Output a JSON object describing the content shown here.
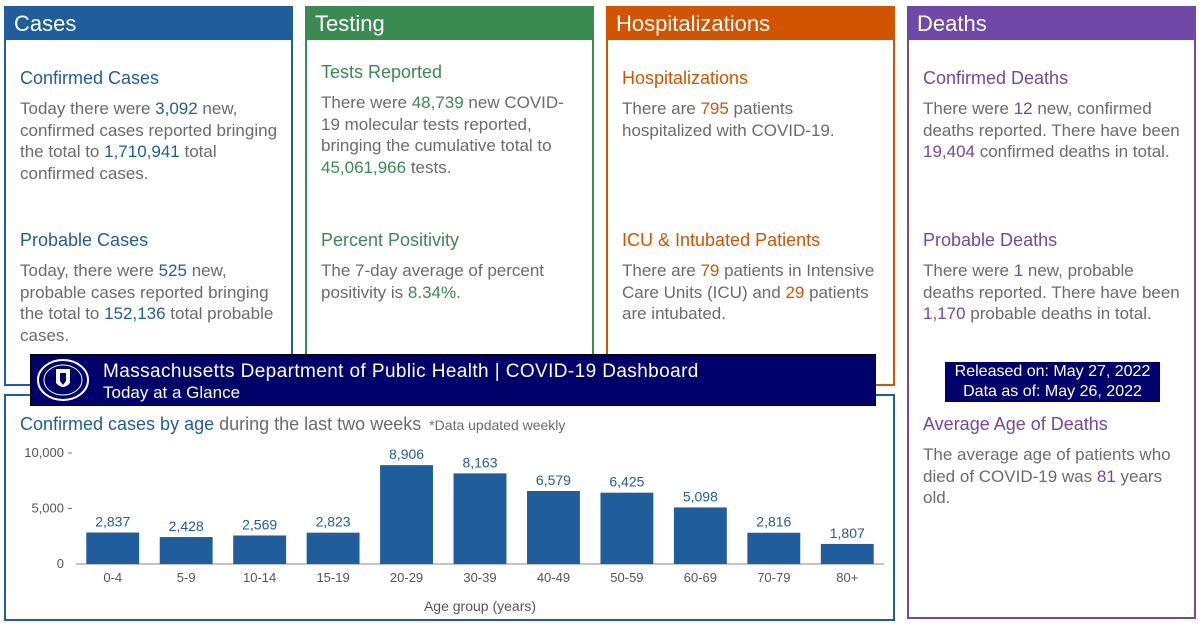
{
  "cards": {
    "cases": {
      "header": "Cases",
      "confirmed": {
        "title": "Confirmed Cases",
        "t1": "Today there were ",
        "new": "3,092",
        "t2": " new, confirmed cases reported bringing the total to ",
        "total": "1,710,941",
        "t3": " total confirmed cases."
      },
      "probable": {
        "title": "Probable Cases",
        "t1": "Today, there were ",
        "new": "525",
        "t2": " new, probable cases reported bringing the total to ",
        "total": "152,136",
        "t3": " total probable cases."
      }
    },
    "testing": {
      "header": "Testing",
      "tests": {
        "title": "Tests Reported",
        "t1": "There were ",
        "new": "48,739",
        "t2": " new COVID-19 molecular tests reported, bringing the cumulative total to ",
        "total": "45,061,966",
        "t3": " tests."
      },
      "positivity": {
        "title": "Percent Positivity",
        "t1": "The 7-day average of percent positivity is ",
        "value": "8.34%",
        "t2": "."
      }
    },
    "hospitalizations": {
      "header": "Hospitalizations",
      "hosp": {
        "title": "Hospitalizations",
        "t1": "There are ",
        "value": "795",
        "t2": " patients hospitalized with COVID-19."
      },
      "icu": {
        "title": "ICU & Intubated Patients",
        "t1": "There are ",
        "icu": "79",
        "t2": " patients in Intensive Care Units (ICU) and ",
        "intubated": "29",
        "t3": " patients are intubated."
      }
    },
    "deaths": {
      "header": "Deaths",
      "confirmed": {
        "title": "Confirmed Deaths",
        "t1": "There were ",
        "new": "12",
        "t2": " new, confirmed deaths reported. There have been ",
        "total": "19,404",
        "t3": " confirmed deaths in total."
      },
      "probable": {
        "title": "Probable Deaths",
        "t1": "There were ",
        "new": "1",
        "t2": " new, probable deaths reported. There have been ",
        "total": "1,170",
        "t3": " probable deaths in total."
      },
      "average_age": {
        "title": "Average Age of Deaths",
        "t1": "The average age of patients who died of COVID-19 was ",
        "value": "81",
        "t2": " years old."
      }
    }
  },
  "banner": {
    "title": "Massachusetts Department of Public Health  |  COVID-19 Dashboard",
    "subtitle": "Today at a Glance",
    "seal_icon": "massachusetts-seal-icon"
  },
  "release": {
    "released": "Released on: May 27, 2022",
    "data_as_of": "Data as of: May 26, 2022"
  },
  "colors": {
    "cases": "#1f5d9c",
    "testing": "#3a8a52",
    "hospitalizations": "#d35400",
    "deaths": "#7048a8",
    "banner": "#00006a",
    "bar": "#1f5d9c"
  },
  "chart_data": {
    "type": "bar",
    "title_highlight": "Confirmed cases by age",
    "title_rest": " during the last two weeks",
    "note": "*Data updated weekly",
    "xlabel": "Age group (years)",
    "ylabel": "",
    "categories": [
      "0-4",
      "5-9",
      "10-14",
      "15-19",
      "20-29",
      "30-39",
      "40-49",
      "50-59",
      "60-69",
      "70-79",
      "80+"
    ],
    "values": [
      2837,
      2428,
      2569,
      2823,
      8906,
      8163,
      6579,
      6425,
      5098,
      2816,
      1807
    ],
    "value_labels": [
      "2,837",
      "2,428",
      "2,569",
      "2,823",
      "8,906",
      "8,163",
      "6,579",
      "6,425",
      "5,098",
      "2,816",
      "1,807"
    ],
    "yticks": [
      0,
      5000,
      10000
    ],
    "ytick_labels": [
      "0",
      "5,000",
      "10,000"
    ],
    "ylim": [
      0,
      10000
    ],
    "grid": false,
    "legend": "none"
  }
}
